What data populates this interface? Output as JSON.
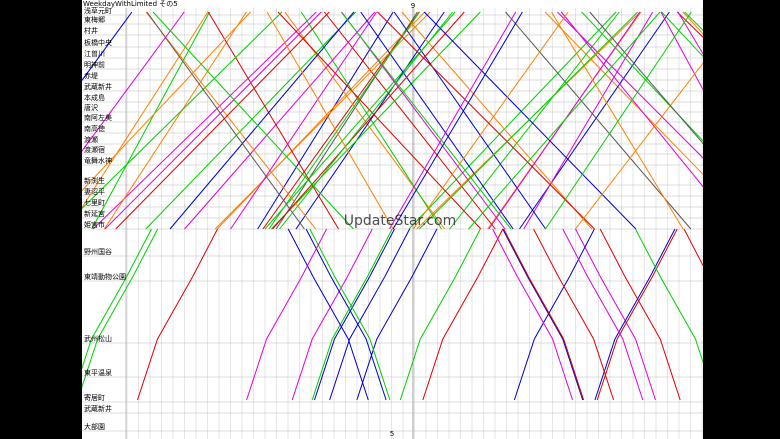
{
  "header": {
    "title": "WeekdayWithLimited その5",
    "top_hour": "9",
    "bottom_hour": "5"
  },
  "stations": [
    "浅草元町",
    "東梅郷",
    "村井",
    "板橋中央",
    "江曽川",
    "明神前",
    "赤堤",
    "武蔵新井",
    "本成島",
    "唐沢",
    "南阿左美",
    "南高徳",
    "渡瀬",
    "渡瀬宿",
    "竜舞水神",
    "新渕生",
    "妻沼平",
    "七里町",
    "新延宮",
    "姫宮市",
    "野州国谷",
    "東靖動物公園",
    "武州松山",
    "東平温泉",
    "寄居町",
    "武蔵新井",
    "大部園"
  ],
  "watermark": "UpdateStar.com"
}
